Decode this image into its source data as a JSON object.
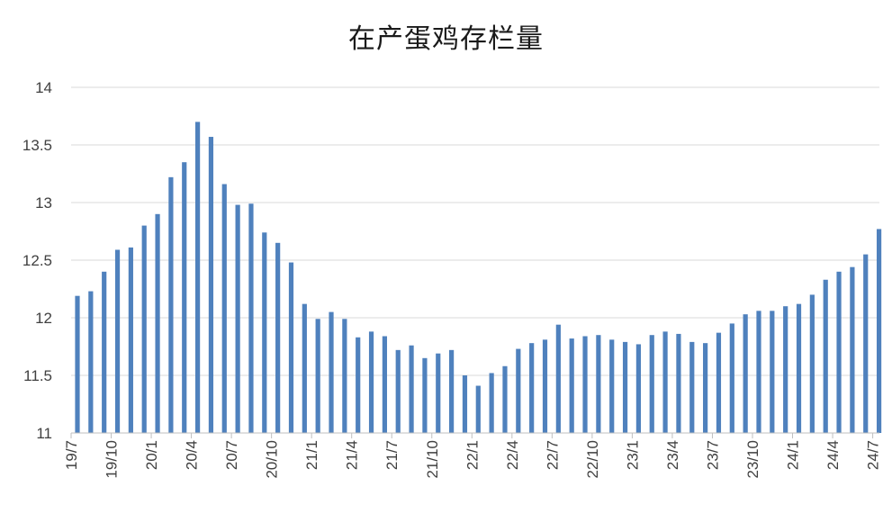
{
  "colors": {
    "bar": "#4f81bd",
    "grid": "#d9d9d9",
    "axis": "#bfbfbf",
    "text": "#404040"
  },
  "chart_data": {
    "type": "bar",
    "title": "在产蛋鸡存栏量",
    "xlabel": "",
    "ylabel": "",
    "ylim": [
      11,
      14
    ],
    "yticks": [
      11,
      11.5,
      12,
      12.5,
      13,
      13.5,
      14
    ],
    "ytick_labels": [
      "11",
      "11.5",
      "12",
      "12.5",
      "13",
      "13.5",
      "14"
    ],
    "grid": true,
    "legend": "none",
    "categories": [
      "19/7",
      "19/8",
      "19/9",
      "19/10",
      "19/11",
      "19/12",
      "20/1",
      "20/2",
      "20/3",
      "20/4",
      "20/5",
      "20/6",
      "20/7",
      "20/8",
      "20/9",
      "20/10",
      "20/11",
      "20/12",
      "21/1",
      "21/2",
      "21/3",
      "21/4",
      "21/5",
      "21/6",
      "21/7",
      "21/8",
      "21/9",
      "21/10",
      "21/11",
      "21/12",
      "22/1",
      "22/2",
      "22/3",
      "22/4",
      "22/5",
      "22/6",
      "22/7",
      "22/8",
      "22/9",
      "22/10",
      "22/11",
      "22/12",
      "23/1",
      "23/2",
      "23/3",
      "23/4",
      "23/5",
      "23/6",
      "23/7",
      "23/8",
      "23/9",
      "23/10",
      "23/11",
      "23/12",
      "24/1",
      "24/2",
      "24/3",
      "24/4",
      "24/5",
      "24/6",
      "24/7"
    ],
    "xtick_labels_shown": [
      "19/7",
      "19/10",
      "20/1",
      "20/4",
      "20/7",
      "20/10",
      "21/1",
      "21/4",
      "21/7",
      "21/10",
      "22/1",
      "22/4",
      "22/7",
      "22/10",
      "23/1",
      "23/4",
      "23/7",
      "23/10",
      "24/1",
      "24/4",
      "24/7"
    ],
    "values": [
      12.19,
      12.23,
      12.4,
      12.59,
      12.61,
      12.8,
      12.9,
      13.22,
      13.35,
      13.7,
      13.57,
      13.16,
      12.98,
      12.99,
      12.74,
      12.65,
      12.48,
      12.12,
      11.99,
      12.05,
      11.99,
      11.83,
      11.88,
      11.84,
      11.72,
      11.76,
      11.65,
      11.69,
      11.72,
      11.5,
      11.41,
      11.52,
      11.58,
      11.73,
      11.78,
      11.81,
      11.94,
      11.82,
      11.84,
      11.85,
      11.81,
      11.79,
      11.77,
      11.85,
      11.88,
      11.86,
      11.79,
      11.78,
      11.87,
      11.95,
      12.03,
      12.06,
      12.06,
      12.1,
      12.12,
      12.2,
      12.33,
      12.4,
      12.44,
      12.55,
      12.77
    ]
  }
}
